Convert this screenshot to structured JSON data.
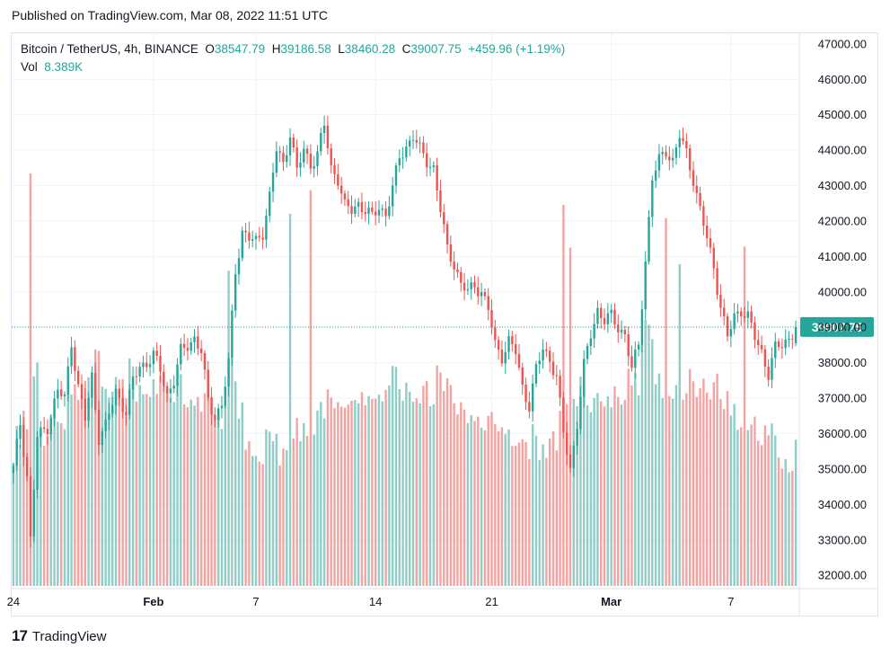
{
  "header": {
    "published": "Published on TradingView.com, Mar 08, 2022 11:51 UTC"
  },
  "legend": {
    "symbol": "Bitcoin / TetherUS, 4h, BINANCE",
    "open_label": "O",
    "open": "38547.79",
    "high_label": "H",
    "high": "39186.58",
    "low_label": "L",
    "low": "38460.28",
    "close_label": "C",
    "close": "39007.75",
    "change": "+459.96 (+1.19%)",
    "vol_label": "Vol",
    "vol": "8.389K"
  },
  "footer": {
    "brand": "TradingView",
    "logo_glyph": "17"
  },
  "colors": {
    "up": "#26a69a",
    "down": "#ef5350",
    "vol_up": "#8fcdc6",
    "vol_down": "#f3a3a1",
    "grid": "#f0f3fa",
    "axis_text": "#131722"
  },
  "chart_data": {
    "type": "candlestick",
    "interval": "4h",
    "ylim": [
      31700,
      47300
    ],
    "y_ticks": [
      "47000.00",
      "46000.00",
      "45000.00",
      "44000.00",
      "43000.00",
      "42000.00",
      "41000.00",
      "40000.00",
      "39000.00",
      "38000.00",
      "37000.00",
      "36000.00",
      "35000.00",
      "34000.00",
      "33000.00",
      "32000.00"
    ],
    "x_ticks": [
      "24",
      "Feb",
      "7",
      "14",
      "21",
      "Mar",
      "7"
    ],
    "last_price_label": "39007.75",
    "last_price": 39007.75,
    "series": [
      {
        "name": "price",
        "path": [
          [
            0,
            35000
          ],
          [
            2,
            36300
          ],
          [
            4,
            34800
          ],
          [
            5,
            33000
          ],
          [
            7,
            35900
          ],
          [
            10,
            36200
          ],
          [
            13,
            37200
          ],
          [
            15,
            37000
          ],
          [
            17,
            38600
          ],
          [
            19,
            37300
          ],
          [
            21,
            36400
          ],
          [
            23,
            37600
          ],
          [
            25,
            35900
          ],
          [
            27,
            36200
          ],
          [
            30,
            37200
          ],
          [
            33,
            36600
          ],
          [
            35,
            37500
          ],
          [
            37,
            37900
          ],
          [
            39,
            38000
          ],
          [
            41,
            38200
          ],
          [
            43,
            37800
          ],
          [
            45,
            37100
          ],
          [
            47,
            37500
          ],
          [
            49,
            38300
          ],
          [
            51,
            38500
          ],
          [
            53,
            38700
          ],
          [
            55,
            38300
          ],
          [
            57,
            36900
          ],
          [
            59,
            36500
          ],
          [
            61,
            36800
          ],
          [
            63,
            38000
          ],
          [
            65,
            40600
          ],
          [
            67,
            41700
          ],
          [
            69,
            41500
          ],
          [
            71,
            41400
          ],
          [
            73,
            41700
          ],
          [
            75,
            42700
          ],
          [
            77,
            44000
          ],
          [
            79,
            43600
          ],
          [
            81,
            44500
          ],
          [
            83,
            43400
          ],
          [
            85,
            44000
          ],
          [
            87,
            43600
          ],
          [
            89,
            43900
          ],
          [
            91,
            44700
          ],
          [
            93,
            43500
          ],
          [
            95,
            43200
          ],
          [
            97,
            42400
          ],
          [
            99,
            42300
          ],
          [
            101,
            42500
          ],
          [
            103,
            42300
          ],
          [
            105,
            42100
          ],
          [
            107,
            42400
          ],
          [
            109,
            42200
          ],
          [
            111,
            42900
          ],
          [
            113,
            43800
          ],
          [
            115,
            44100
          ],
          [
            117,
            44400
          ],
          [
            119,
            44000
          ],
          [
            121,
            43700
          ],
          [
            123,
            43500
          ],
          [
            125,
            42300
          ],
          [
            127,
            41200
          ],
          [
            129,
            40800
          ],
          [
            131,
            40200
          ],
          [
            133,
            40000
          ],
          [
            135,
            40200
          ],
          [
            137,
            40000
          ],
          [
            139,
            39500
          ],
          [
            141,
            38500
          ],
          [
            143,
            38200
          ],
          [
            145,
            38600
          ],
          [
            147,
            38300
          ],
          [
            149,
            37300
          ],
          [
            151,
            36800
          ],
          [
            153,
            37800
          ],
          [
            155,
            38400
          ],
          [
            157,
            38100
          ],
          [
            159,
            37600
          ],
          [
            161,
            36000
          ],
          [
            163,
            35000
          ],
          [
            165,
            36300
          ],
          [
            167,
            37900
          ],
          [
            169,
            38800
          ],
          [
            171,
            39500
          ],
          [
            173,
            39200
          ],
          [
            175,
            39300
          ],
          [
            177,
            39000
          ],
          [
            179,
            38800
          ],
          [
            181,
            37800
          ],
          [
            183,
            38500
          ],
          [
            185,
            40900
          ],
          [
            187,
            43200
          ],
          [
            189,
            43700
          ],
          [
            191,
            44000
          ],
          [
            193,
            43700
          ],
          [
            195,
            44400
          ],
          [
            197,
            43900
          ],
          [
            199,
            43200
          ],
          [
            201,
            42300
          ],
          [
            203,
            41500
          ],
          [
            205,
            40700
          ],
          [
            207,
            39600
          ],
          [
            209,
            38700
          ],
          [
            211,
            39300
          ],
          [
            213,
            39500
          ],
          [
            215,
            39300
          ],
          [
            217,
            38700
          ],
          [
            219,
            38300
          ],
          [
            221,
            37700
          ],
          [
            223,
            38400
          ],
          [
            225,
            38500
          ],
          [
            227,
            38700
          ],
          [
            229,
            39007.75
          ]
        ]
      },
      {
        "name": "volume",
        "ylim": [
          0,
          45000
        ],
        "approx_peak": 34000
      }
    ],
    "last_bar": {
      "open": 38547.79,
      "high": 39186.58,
      "low": 38460.28,
      "close": 39007.75,
      "volume": "8.389K"
    }
  }
}
